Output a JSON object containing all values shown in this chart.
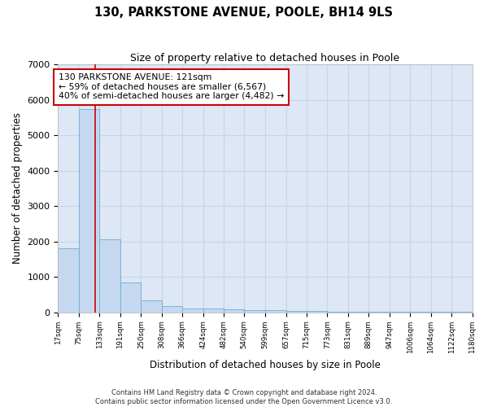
{
  "title1": "130, PARKSTONE AVENUE, POOLE, BH14 9LS",
  "title2": "Size of property relative to detached houses in Poole",
  "xlabel": "Distribution of detached houses by size in Poole",
  "ylabel": "Number of detached properties",
  "footnote1": "Contains HM Land Registry data © Crown copyright and database right 2024.",
  "footnote2": "Contains public sector information licensed under the Open Government Licence v3.0.",
  "bin_edges": [
    17,
    75,
    133,
    191,
    250,
    308,
    366,
    424,
    482,
    540,
    599,
    657,
    715,
    773,
    831,
    889,
    947,
    1006,
    1064,
    1122,
    1180
  ],
  "bar_heights": [
    1800,
    5750,
    2050,
    830,
    340,
    185,
    110,
    100,
    90,
    70,
    55,
    40,
    30,
    20,
    15,
    10,
    8,
    5,
    3,
    2
  ],
  "bar_color": "#c5d8f0",
  "bar_edgecolor": "#6baed6",
  "grid_color": "#c8d4e8",
  "red_line_x": 121,
  "annotation_line0": "130 PARKSTONE AVENUE: 121sqm",
  "annotation_line1": "← 59% of detached houses are smaller (6,567)",
  "annotation_line2": "40% of semi-detached houses are larger (4,482) →",
  "annotation_box_facecolor": "#ffffff",
  "annotation_box_edgecolor": "#cc0000",
  "red_line_color": "#cc0000",
  "ylim": [
    0,
    7000
  ],
  "yticks": [
    0,
    1000,
    2000,
    3000,
    4000,
    5000,
    6000,
    7000
  ],
  "background_color": "#dde7f5",
  "tick_labels": [
    "17sqm",
    "75sqm",
    "133sqm",
    "191sqm",
    "250sqm",
    "308sqm",
    "366sqm",
    "424sqm",
    "482sqm",
    "540sqm",
    "599sqm",
    "657sqm",
    "715sqm",
    "773sqm",
    "831sqm",
    "889sqm",
    "947sqm",
    "1006sqm",
    "1064sqm",
    "1122sqm",
    "1180sqm"
  ]
}
